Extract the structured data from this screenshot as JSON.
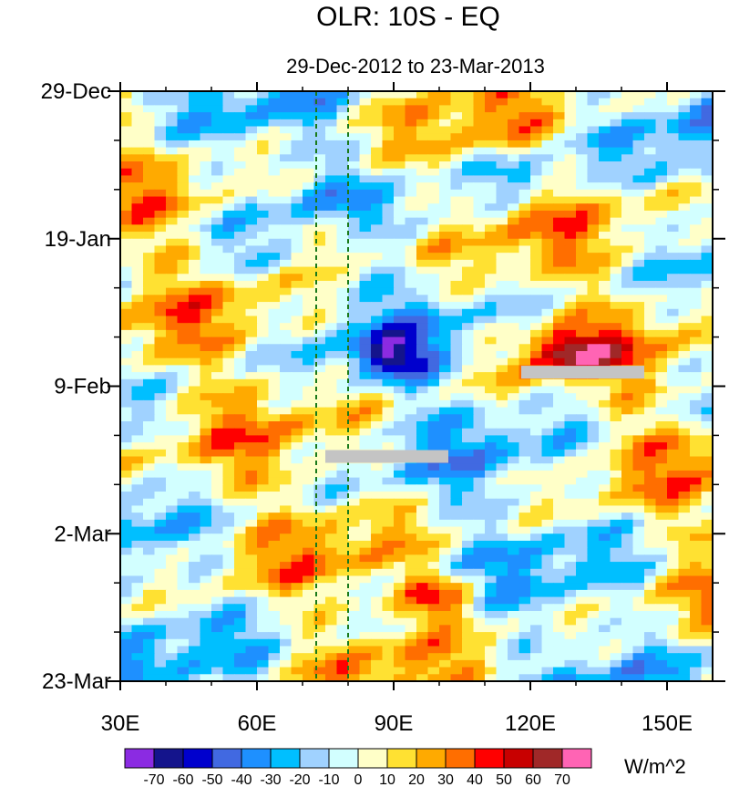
{
  "chart_data": {
    "type": "heatmap",
    "title": "OLR: 10S - EQ",
    "subtitle": "29-Dec-2012 to 23-Mar-2013",
    "x": {
      "label": "",
      "range": [
        30,
        160
      ],
      "ticks": [
        {
          "value": 30,
          "label": "30E"
        },
        {
          "value": 60,
          "label": "60E"
        },
        {
          "value": 90,
          "label": "90E"
        },
        {
          "value": 120,
          "label": "120E"
        },
        {
          "value": 150,
          "label": "150E"
        }
      ],
      "minor_ticks": [
        40,
        50,
        70,
        80,
        100,
        110,
        130,
        140
      ]
    },
    "y": {
      "label": "",
      "range_days": [
        0,
        84
      ],
      "direction": "downward",
      "ticks": [
        {
          "day": 0,
          "label": "29-Dec"
        },
        {
          "day": 21,
          "label": "19-Jan"
        },
        {
          "day": 42,
          "label": "9-Feb"
        },
        {
          "day": 63,
          "label": "2-Mar"
        },
        {
          "day": 84,
          "label": "23-Mar"
        }
      ],
      "minor_tick_days": [
        7,
        14,
        28,
        35,
        49,
        56,
        70,
        77
      ]
    },
    "reference_lines": [
      {
        "lon": 73,
        "style": "dashed",
        "color": "#1a7a1a"
      },
      {
        "lon": 80,
        "style": "dashed",
        "color": "#1a7a1a"
      }
    ],
    "missing_data": [
      {
        "lon": [
          75,
          102
        ],
        "day": 52
      },
      {
        "lon": [
          118,
          145
        ],
        "day": 40
      }
    ],
    "colorbar": {
      "unit": "W/m^2",
      "levels": [
        -70,
        -60,
        -50,
        -40,
        -30,
        -20,
        -10,
        0,
        10,
        20,
        30,
        40,
        50,
        60,
        70
      ],
      "labels": [
        "-70",
        "-60",
        "-50",
        "-40",
        "-30",
        "-20",
        "-10",
        "0",
        "10",
        "20",
        "30",
        "40",
        "50",
        "60",
        "70"
      ],
      "colors": [
        "#8b2be2",
        "#14148c",
        "#0000cd",
        "#4169e1",
        "#1e90ff",
        "#00bfff",
        "#a0d2ff",
        "#d2ffff",
        "#ffffc8",
        "#ffe132",
        "#ffaa00",
        "#ff6e00",
        "#ff0000",
        "#c80000",
        "#a02828",
        "#ff64b4"
      ]
    },
    "features": [
      {
        "lon": 128,
        "day": 37,
        "value": 65
      },
      {
        "lon": 100,
        "day": 72,
        "value": 55
      },
      {
        "lon": 78,
        "day": 21,
        "value": 45
      },
      {
        "lon": 90,
        "day": 38,
        "value": -55
      },
      {
        "lon": 118,
        "day": 12,
        "value": -40
      }
    ]
  }
}
